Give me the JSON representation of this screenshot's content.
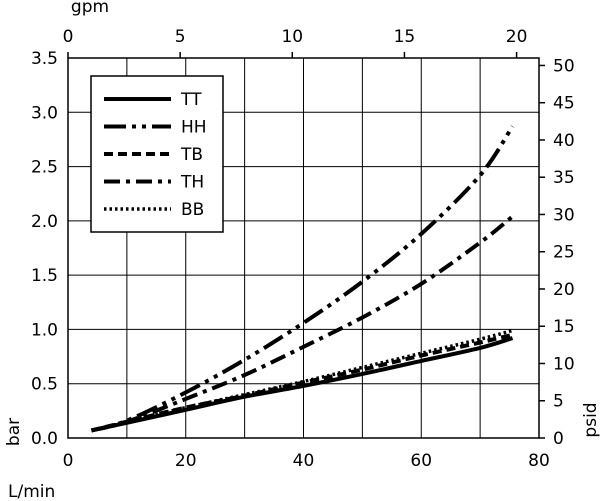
{
  "chart_data": {
    "type": "line",
    "x_label": "L/min",
    "y_label": "bar",
    "x2_label": "gpm",
    "y2_label": "psid",
    "xlim": [
      0,
      80
    ],
    "ylim": [
      0,
      3.5
    ],
    "x2lim": [
      0,
      21
    ],
    "y2lim": [
      0,
      51
    ],
    "x_ticks": [
      0,
      20,
      40,
      60,
      80
    ],
    "y_ticks": [
      0.0,
      0.5,
      1.0,
      1.5,
      2.0,
      2.5,
      3.0,
      3.5
    ],
    "x_tick_labels": [
      "0",
      "20",
      "40",
      "60",
      "80"
    ],
    "y_tick_labels": [
      "0.0",
      "0.5",
      "1.0",
      "1.5",
      "2.0",
      "2.5",
      "3.0",
      "3.5"
    ],
    "x2_ticks": [
      0,
      5,
      10,
      15,
      20
    ],
    "x2_tick_labels": [
      "0",
      "5",
      "10",
      "15",
      "20"
    ],
    "y2_ticks": [
      0,
      5,
      10,
      15,
      20,
      25,
      30,
      35,
      40,
      45,
      50
    ],
    "y2_tick_labels": [
      "0",
      "5",
      "10",
      "15",
      "20",
      "25",
      "30",
      "35",
      "40",
      "45",
      "50"
    ],
    "grid": true,
    "legend_position": "top-left",
    "series": [
      {
        "name": "TT",
        "style": "solid",
        "x": [
          4,
          10,
          20,
          30,
          40,
          50,
          60,
          70,
          75.5
        ],
        "y": [
          0.07,
          0.14,
          0.26,
          0.38,
          0.48,
          0.59,
          0.71,
          0.83,
          0.92
        ]
      },
      {
        "name": "HH",
        "style": "dash-dot-dot",
        "x": [
          4,
          10,
          20,
          30,
          40,
          50,
          60,
          70,
          75.5
        ],
        "y": [
          0.07,
          0.16,
          0.42,
          0.72,
          1.06,
          1.44,
          1.88,
          2.42,
          2.87
        ]
      },
      {
        "name": "TB",
        "style": "dashed",
        "x": [
          4,
          10,
          20,
          30,
          40,
          50,
          60,
          70,
          75.5
        ],
        "y": [
          0.07,
          0.15,
          0.28,
          0.39,
          0.51,
          0.63,
          0.76,
          0.88,
          0.95
        ]
      },
      {
        "name": "TH",
        "style": "dash-dot",
        "x": [
          4,
          10,
          20,
          30,
          40,
          50,
          60,
          70,
          75.5
        ],
        "y": [
          0.07,
          0.15,
          0.36,
          0.58,
          0.84,
          1.11,
          1.42,
          1.8,
          2.04
        ]
      },
      {
        "name": "BB",
        "style": "dotted",
        "x": [
          4,
          10,
          20,
          30,
          40,
          50,
          60,
          70,
          75.5
        ],
        "y": [
          0.07,
          0.15,
          0.28,
          0.4,
          0.52,
          0.65,
          0.78,
          0.91,
          0.99
        ]
      }
    ]
  }
}
